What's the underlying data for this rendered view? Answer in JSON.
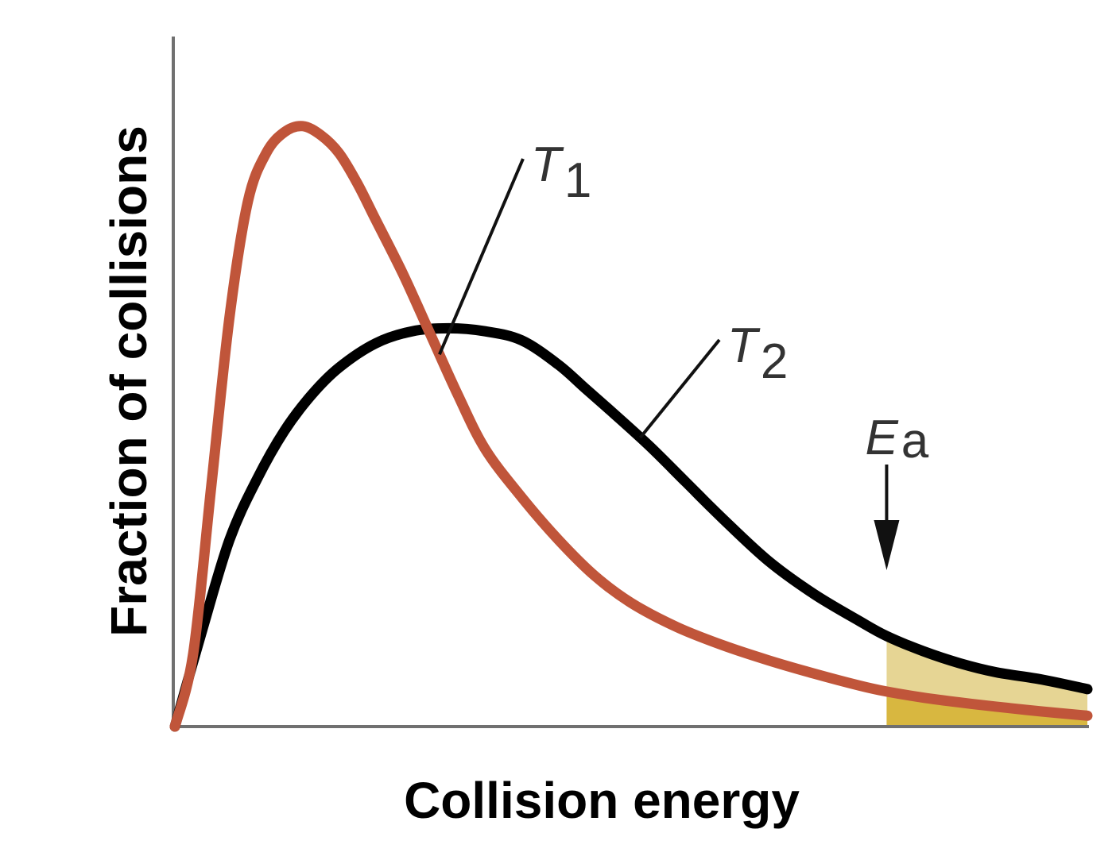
{
  "chart_data": {
    "type": "line",
    "xlabel": "Collision energy",
    "ylabel": "Fraction of collisions",
    "xlim": [
      0,
      100
    ],
    "ylim": [
      0,
      100
    ],
    "grid": false,
    "legend": "inline labels",
    "series": [
      {
        "name": "T1",
        "label_main": "T",
        "label_sub": "1",
        "color": "#c0553a",
        "x": [
          0,
          2,
          4,
          6,
          8,
          10,
          12,
          14,
          16,
          18,
          20,
          22,
          25,
          28,
          31,
          34,
          38,
          42,
          46,
          50,
          55,
          60,
          65,
          70,
          75,
          78,
          82,
          86,
          90,
          95,
          100
        ],
        "y": [
          0,
          12,
          40,
          68,
          87,
          95,
          98.5,
          99.5,
          98,
          95,
          90,
          84,
          75,
          65,
          55,
          46,
          38,
          31,
          25,
          20.5,
          16.5,
          13.5,
          11,
          8.8,
          6.8,
          5.8,
          4.8,
          4,
          3.3,
          2.5,
          1.8
        ]
      },
      {
        "name": "T2",
        "label_main": "T",
        "label_sub": "2",
        "color": "#000000",
        "x": [
          0,
          3,
          6,
          9,
          12,
          15,
          18,
          22,
          26,
          30,
          34,
          38,
          42,
          45,
          48,
          52,
          56,
          60,
          65,
          70,
          75,
          78,
          82,
          86,
          90,
          95,
          100
        ],
        "y": [
          0,
          16,
          31,
          41,
          49,
          55,
          59.5,
          63.5,
          65.5,
          66,
          65.5,
          64,
          60,
          56,
          52,
          46.5,
          40.5,
          34.5,
          27.5,
          22,
          17.5,
          15,
          12.5,
          10.5,
          9,
          7.8,
          6.2
        ]
      }
    ],
    "annotations": [
      {
        "label_main": "E",
        "label_sub": "a",
        "x": 78,
        "marker": "down-arrow"
      }
    ],
    "shaded_region": {
      "x_from": 78,
      "x_to": 100,
      "upper_color": "#e6d594",
      "lower_color": "#d8b740"
    }
  }
}
